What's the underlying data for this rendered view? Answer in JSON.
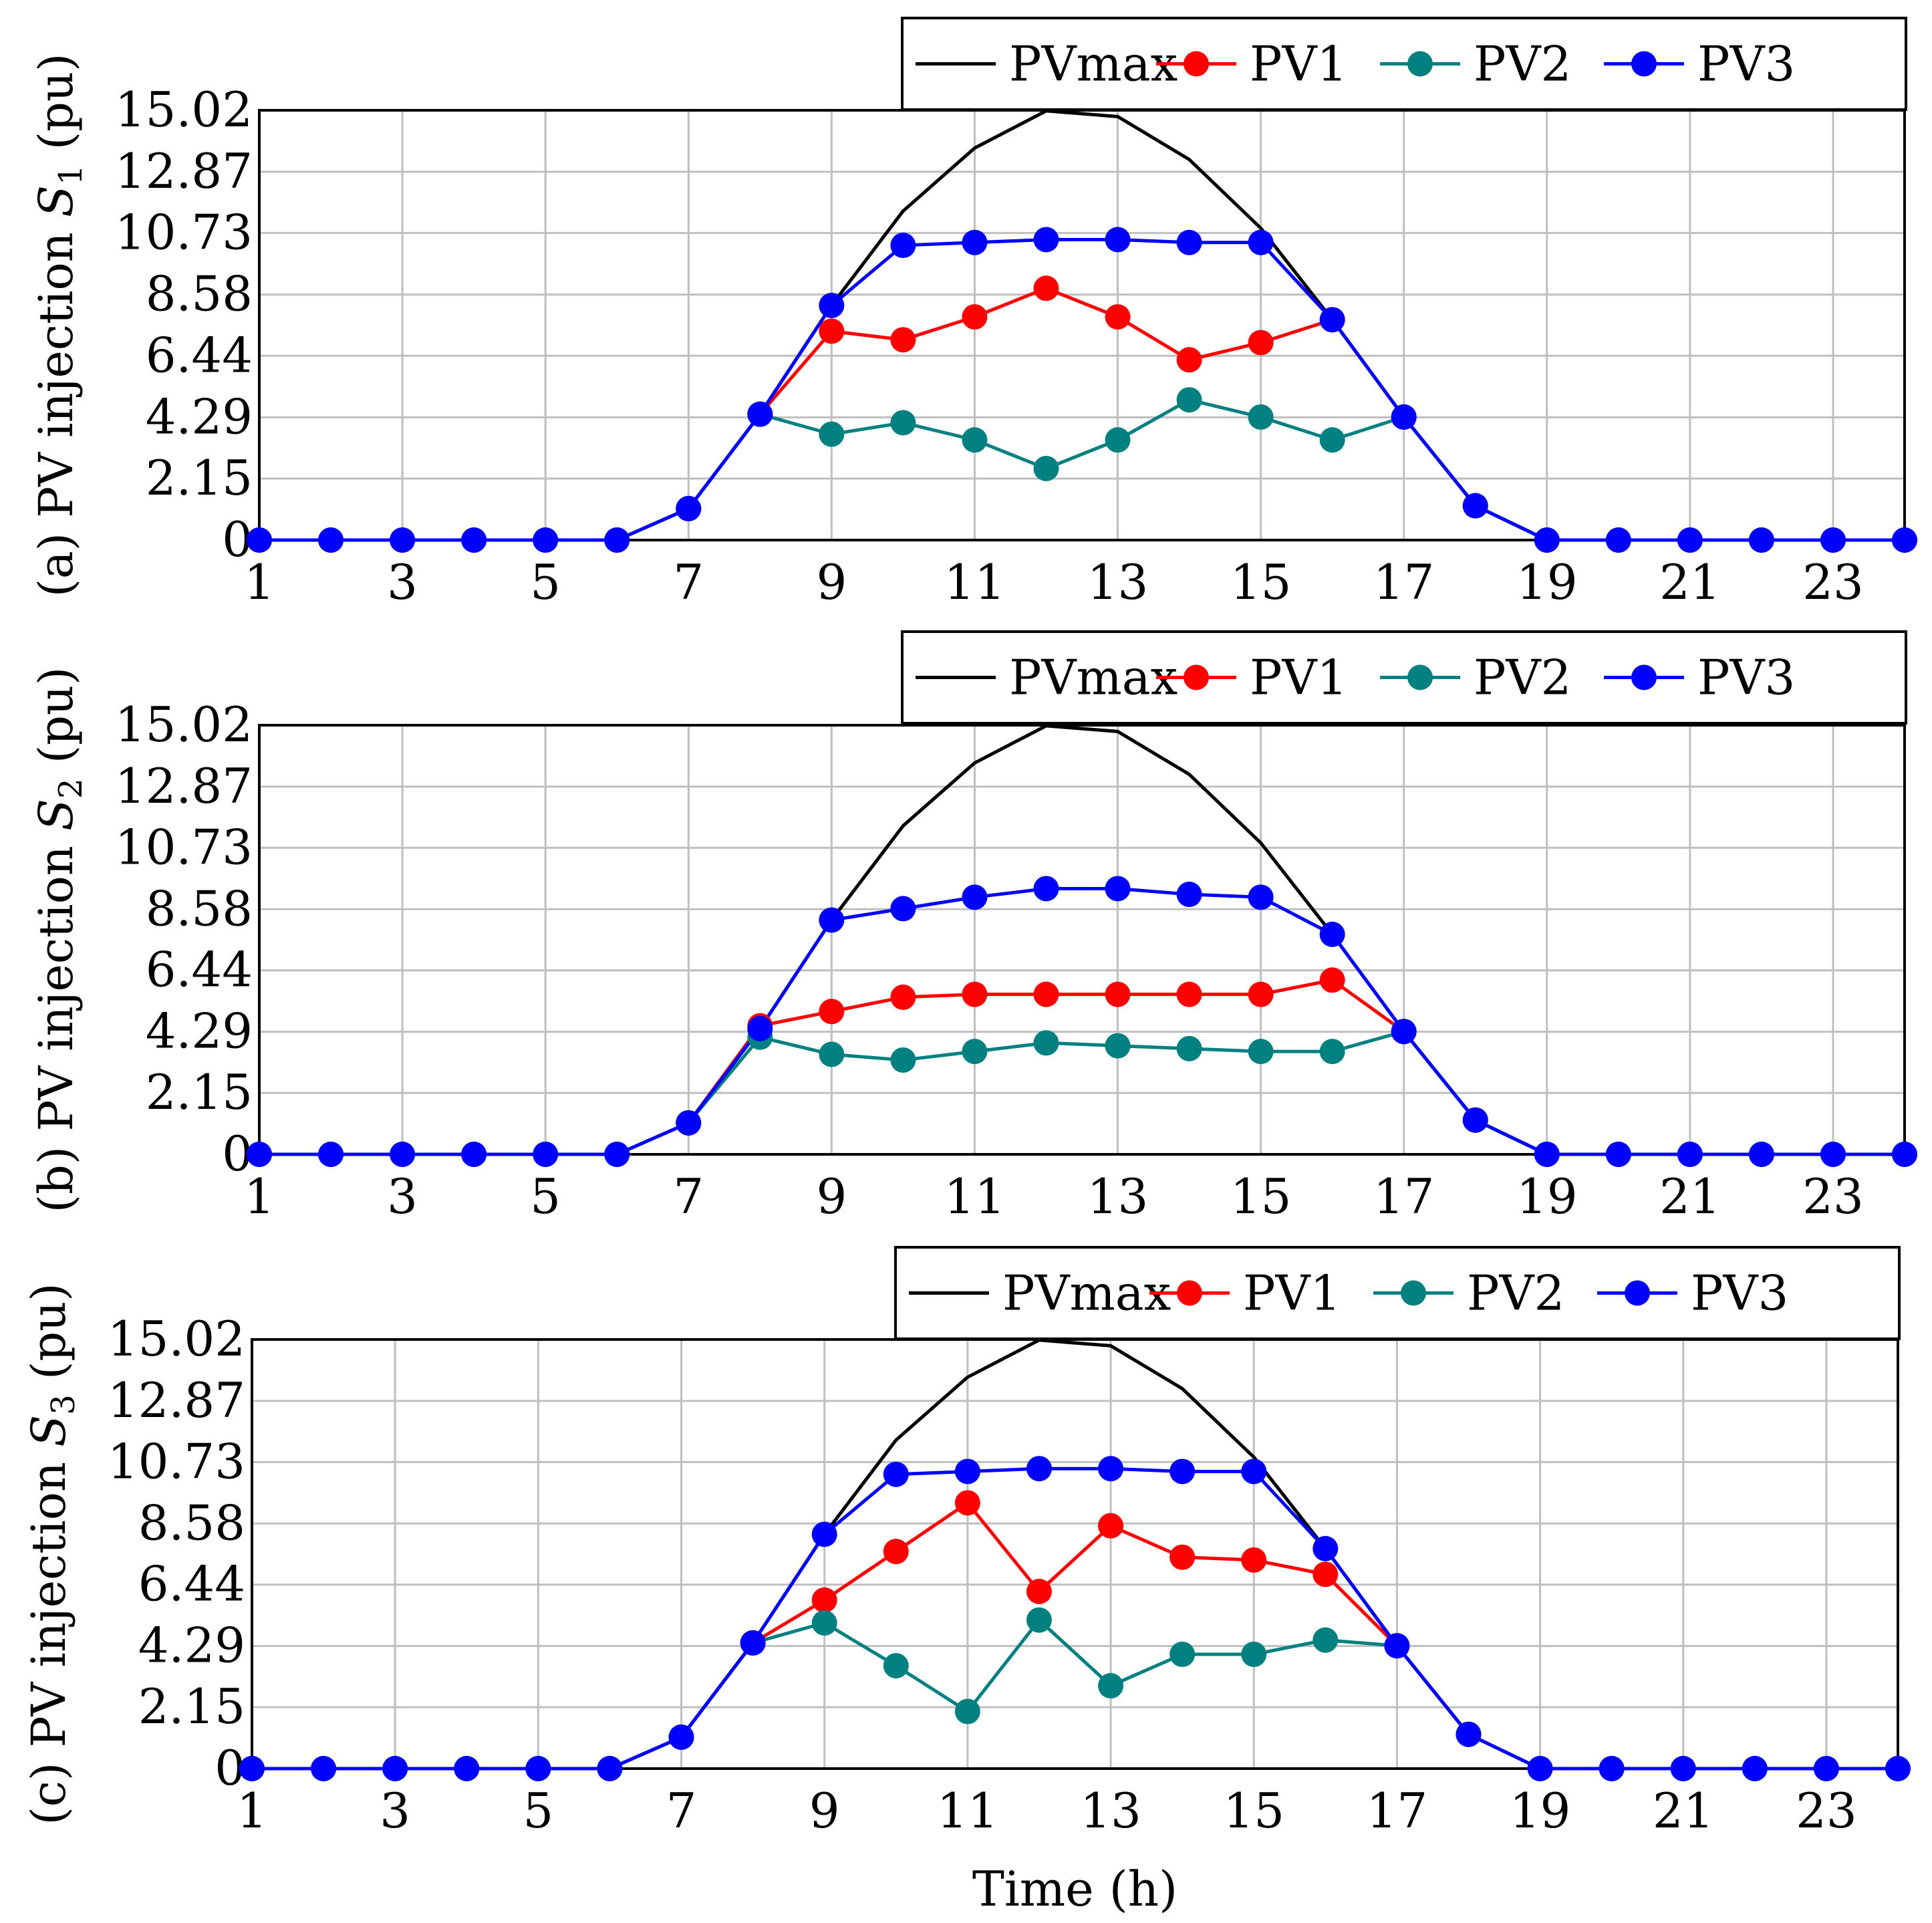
{
  "colors": {
    "PVmax": "#000000",
    "PV1": "#ff0000",
    "PV2": "#008080",
    "PV3": "#0000ff",
    "grid": "#bfbfbf",
    "axis": "#000000"
  },
  "chart_data": [
    {
      "type": "line",
      "panel_label": "(a)",
      "ylabel_prefix": "(a) PV injection ",
      "ylabel_symbol": "S",
      "ylabel_sub": "1",
      "ylabel_suffix": " (pu)",
      "xlabel": "",
      "x": [
        1,
        2,
        3,
        4,
        5,
        6,
        7,
        8,
        9,
        10,
        11,
        12,
        13,
        14,
        15,
        16,
        17,
        18,
        19,
        20,
        21,
        22,
        23,
        24
      ],
      "xlim": [
        1,
        24
      ],
      "ylim": [
        0,
        15.02
      ],
      "xticks": [
        1,
        3,
        5,
        7,
        9,
        11,
        13,
        15,
        17,
        19,
        21,
        23
      ],
      "yticks": [
        0,
        2.15,
        4.29,
        6.44,
        8.58,
        10.73,
        12.87,
        15.02
      ],
      "ytick_labels": [
        "0",
        "2.15",
        "4.29",
        "6.44",
        "8.58",
        "10.73",
        "12.87",
        "15.02"
      ],
      "grid": true,
      "legend": {
        "placement": "top-right, above axes",
        "entries": [
          "PVmax",
          "PV1",
          "PV2",
          "PV3"
        ]
      },
      "series": [
        {
          "name": "PVmax",
          "markers": false,
          "values": [
            0,
            0,
            0,
            0,
            0,
            0,
            1.1,
            4.4,
            8.2,
            11.5,
            13.7,
            15.0,
            14.8,
            13.3,
            10.9,
            7.7,
            4.3,
            1.2,
            0,
            0,
            0,
            0,
            0,
            0
          ]
        },
        {
          "name": "PV1",
          "markers": true,
          "values": [
            0,
            0,
            0,
            0,
            0,
            0,
            1.1,
            4.4,
            7.3,
            7.0,
            7.8,
            8.8,
            7.8,
            6.3,
            6.9,
            7.7,
            4.3,
            1.2,
            0,
            0,
            0,
            0,
            0,
            0
          ]
        },
        {
          "name": "PV2",
          "markers": true,
          "values": [
            0,
            0,
            0,
            0,
            0,
            0,
            1.1,
            4.4,
            3.7,
            4.1,
            3.5,
            2.5,
            3.5,
            4.9,
            4.3,
            3.5,
            4.3,
            1.2,
            0,
            0,
            0,
            0,
            0,
            0
          ]
        },
        {
          "name": "PV3",
          "markers": true,
          "values": [
            0,
            0,
            0,
            0,
            0,
            0,
            1.1,
            4.4,
            8.2,
            10.3,
            10.4,
            10.5,
            10.5,
            10.4,
            10.4,
            7.7,
            4.3,
            1.2,
            0,
            0,
            0,
            0,
            0,
            0
          ]
        }
      ]
    },
    {
      "type": "line",
      "panel_label": "(b)",
      "ylabel_prefix": "(b) PV injection ",
      "ylabel_symbol": "S",
      "ylabel_sub": "2",
      "ylabel_suffix": " (pu)",
      "xlabel": "",
      "x": [
        1,
        2,
        3,
        4,
        5,
        6,
        7,
        8,
        9,
        10,
        11,
        12,
        13,
        14,
        15,
        16,
        17,
        18,
        19,
        20,
        21,
        22,
        23,
        24
      ],
      "xlim": [
        1,
        24
      ],
      "ylim": [
        0,
        15.02
      ],
      "xticks": [
        1,
        3,
        5,
        7,
        9,
        11,
        13,
        15,
        17,
        19,
        21,
        23
      ],
      "yticks": [
        0,
        2.15,
        4.29,
        6.44,
        8.58,
        10.73,
        12.87,
        15.02
      ],
      "ytick_labels": [
        "0",
        "2.15",
        "4.29",
        "6.44",
        "8.58",
        "10.73",
        "12.87",
        "15.02"
      ],
      "grid": true,
      "legend": {
        "placement": "top-right, above axes",
        "entries": [
          "PVmax",
          "PV1",
          "PV2",
          "PV3"
        ]
      },
      "series": [
        {
          "name": "PVmax",
          "markers": false,
          "values": [
            0,
            0,
            0,
            0,
            0,
            0,
            1.1,
            4.4,
            8.2,
            11.5,
            13.7,
            15.0,
            14.8,
            13.3,
            10.9,
            7.7,
            4.3,
            1.2,
            0,
            0,
            0,
            0,
            0,
            0
          ]
        },
        {
          "name": "PV1",
          "markers": true,
          "values": [
            0,
            0,
            0,
            0,
            0,
            0,
            1.1,
            4.5,
            5.0,
            5.5,
            5.6,
            5.6,
            5.6,
            5.6,
            5.6,
            6.1,
            4.3,
            1.2,
            0,
            0,
            0,
            0,
            0,
            0
          ]
        },
        {
          "name": "PV2",
          "markers": true,
          "values": [
            0,
            0,
            0,
            0,
            0,
            0,
            1.1,
            4.1,
            3.5,
            3.3,
            3.6,
            3.9,
            3.8,
            3.7,
            3.6,
            3.6,
            4.3,
            1.2,
            0,
            0,
            0,
            0,
            0,
            0
          ]
        },
        {
          "name": "PV3",
          "markers": true,
          "values": [
            0,
            0,
            0,
            0,
            0,
            0,
            1.1,
            4.4,
            8.2,
            8.6,
            9.0,
            9.3,
            9.3,
            9.1,
            9.0,
            7.7,
            4.3,
            1.2,
            0,
            0,
            0,
            0,
            0,
            0
          ]
        }
      ]
    },
    {
      "type": "line",
      "panel_label": "(c)",
      "ylabel_prefix": "(c) PV injection ",
      "ylabel_symbol": "S",
      "ylabel_sub": "3",
      "ylabel_suffix": " (pu)",
      "xlabel": "Time (h)",
      "x": [
        1,
        2,
        3,
        4,
        5,
        6,
        7,
        8,
        9,
        10,
        11,
        12,
        13,
        14,
        15,
        16,
        17,
        18,
        19,
        20,
        21,
        22,
        23,
        24
      ],
      "xlim": [
        1,
        24
      ],
      "ylim": [
        0,
        15.02
      ],
      "xticks": [
        1,
        3,
        5,
        7,
        9,
        11,
        13,
        15,
        17,
        19,
        21,
        23
      ],
      "yticks": [
        0,
        2.15,
        4.29,
        6.44,
        8.58,
        10.73,
        12.87,
        15.02
      ],
      "ytick_labels": [
        "0",
        "2.15",
        "4.29",
        "6.44",
        "8.58",
        "10.73",
        "12.87",
        "15.02"
      ],
      "grid": true,
      "legend": {
        "placement": "top-right, above axes",
        "entries": [
          "PVmax",
          "PV1",
          "PV2",
          "PV3"
        ]
      },
      "series": [
        {
          "name": "PVmax",
          "markers": false,
          "values": [
            0,
            0,
            0,
            0,
            0,
            0,
            1.1,
            4.4,
            8.2,
            11.5,
            13.7,
            15.0,
            14.8,
            13.3,
            10.9,
            7.7,
            4.3,
            1.2,
            0,
            0,
            0,
            0,
            0,
            0
          ]
        },
        {
          "name": "PV1",
          "markers": true,
          "values": [
            0,
            0,
            0,
            0,
            0,
            0,
            1.1,
            4.4,
            5.9,
            7.6,
            9.3,
            6.2,
            8.5,
            7.4,
            7.3,
            6.8,
            4.3,
            1.2,
            0,
            0,
            0,
            0,
            0,
            0
          ]
        },
        {
          "name": "PV2",
          "markers": true,
          "values": [
            0,
            0,
            0,
            0,
            0,
            0,
            1.1,
            4.4,
            5.1,
            3.6,
            2.0,
            5.2,
            2.9,
            4.0,
            4.0,
            4.5,
            4.3,
            1.2,
            0,
            0,
            0,
            0,
            0,
            0
          ]
        },
        {
          "name": "PV3",
          "markers": true,
          "values": [
            0,
            0,
            0,
            0,
            0,
            0,
            1.1,
            4.4,
            8.2,
            10.3,
            10.4,
            10.5,
            10.5,
            10.4,
            10.4,
            7.7,
            4.3,
            1.2,
            0,
            0,
            0,
            0,
            0,
            0
          ]
        }
      ]
    }
  ]
}
